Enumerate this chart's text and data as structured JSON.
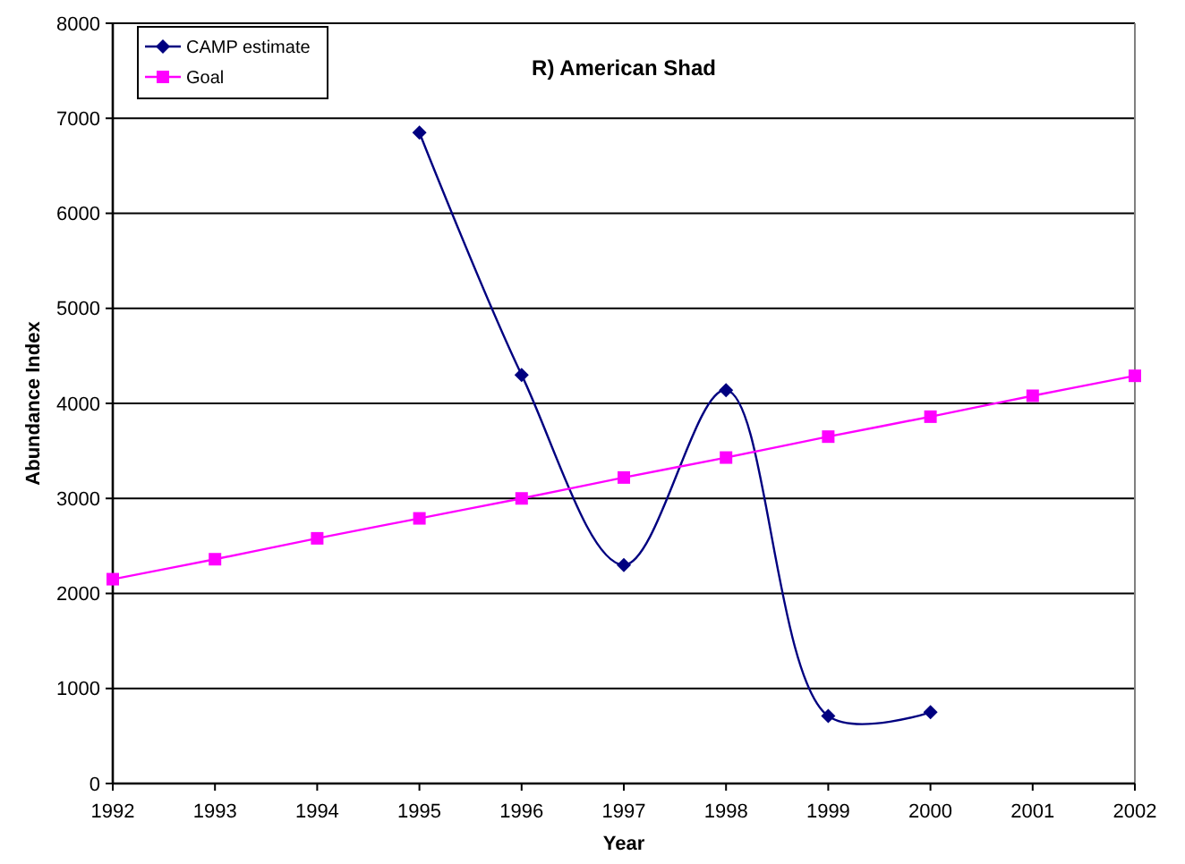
{
  "chart_data": {
    "type": "line",
    "title": "R) American Shad",
    "xlabel": "Year",
    "ylabel": "Abundance Index",
    "x": [
      1992,
      1993,
      1994,
      1995,
      1996,
      1997,
      1998,
      1999,
      2000,
      2001,
      2002
    ],
    "xlim": [
      1992,
      2002
    ],
    "xticks": [
      1992,
      1993,
      1994,
      1995,
      1996,
      1997,
      1998,
      1999,
      2000,
      2001,
      2002
    ],
    "ylim": [
      0,
      8000
    ],
    "yticks": [
      0,
      1000,
      2000,
      3000,
      4000,
      5000,
      6000,
      7000,
      8000
    ],
    "grid": "y",
    "legend": "top left",
    "line_style": "solid",
    "series": [
      {
        "name": "CAMP estimate",
        "color": "#000080",
        "marker": "diamond",
        "values": [
          null,
          null,
          null,
          6850,
          4300,
          2300,
          4140,
          710,
          750,
          null,
          null
        ]
      },
      {
        "name": "Goal",
        "color": "#ff00ff",
        "marker": "square",
        "values": [
          2150,
          2360,
          2580,
          2790,
          3000,
          3220,
          3430,
          3650,
          3860,
          4080,
          4290
        ]
      }
    ]
  }
}
